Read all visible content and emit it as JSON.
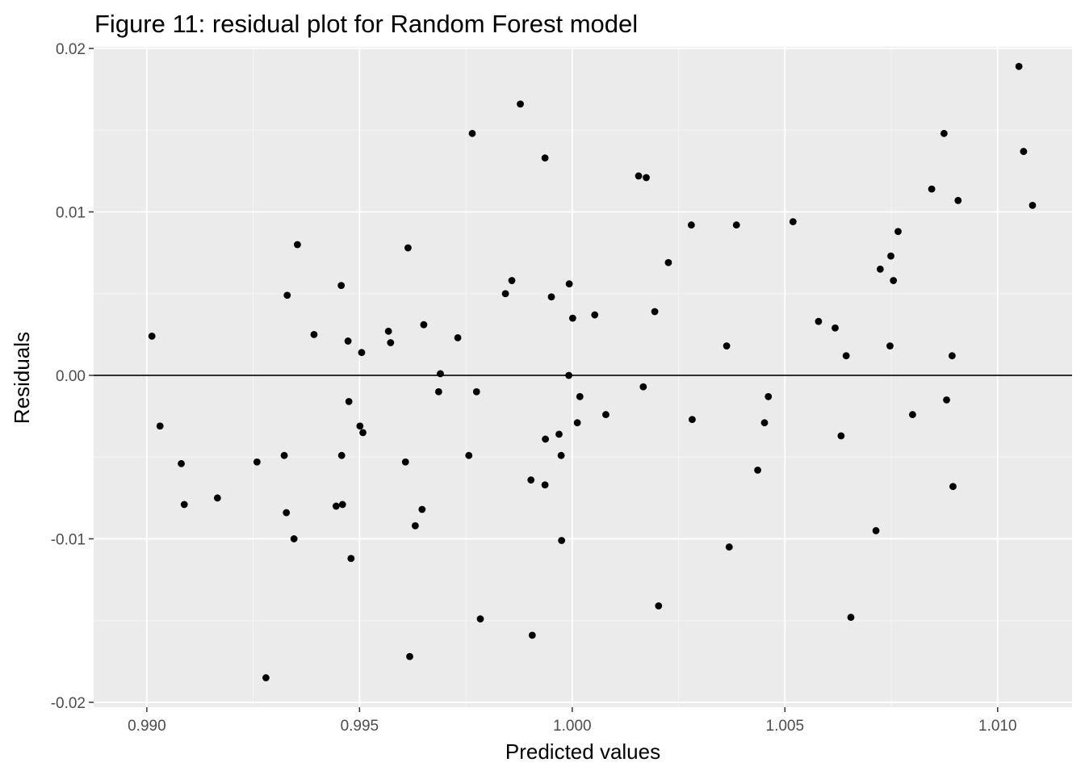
{
  "chart_data": {
    "type": "scatter",
    "title": "Figure 11: residual plot for Random Forest model",
    "xlabel": "Predicted values",
    "ylabel": "Residuals",
    "xlim": [
      0.98875,
      1.01175
    ],
    "ylim": [
      -0.0203,
      0.0201
    ],
    "x_ticks": [
      0.99,
      0.995,
      1.0,
      1.005,
      1.01
    ],
    "x_tick_labels": [
      "0.990",
      "0.995",
      "1.000",
      "1.005",
      "1.010"
    ],
    "y_ticks": [
      -0.02,
      -0.01,
      0.0,
      0.01,
      0.02
    ],
    "y_tick_labels": [
      "-0.02",
      "-0.01",
      "0.00",
      "0.01",
      "0.02"
    ],
    "reference_line_y": 0,
    "grid": true,
    "legend": "none",
    "colors": {
      "panel_background": "#ebebeb",
      "grid_major": "#ffffff",
      "grid_minor": "#f5f5f5",
      "points": "#000000",
      "reference_line": "#000000",
      "tick_label": "#4d4d4d",
      "tick_mark": "#333333"
    },
    "points": [
      {
        "x": 0.99012,
        "y": 0.0024
      },
      {
        "x": 0.99031,
        "y": -0.0031
      },
      {
        "x": 0.99081,
        "y": -0.0054
      },
      {
        "x": 0.99088,
        "y": -0.0079
      },
      {
        "x": 0.99166,
        "y": -0.0075
      },
      {
        "x": 0.99259,
        "y": -0.0053
      },
      {
        "x": 0.9928,
        "y": -0.0185
      },
      {
        "x": 0.99323,
        "y": -0.0049
      },
      {
        "x": 0.99328,
        "y": -0.0084
      },
      {
        "x": 0.9933,
        "y": 0.0049
      },
      {
        "x": 0.99346,
        "y": -0.01
      },
      {
        "x": 0.99354,
        "y": 0.008
      },
      {
        "x": 0.99393,
        "y": 0.0025
      },
      {
        "x": 0.99445,
        "y": -0.008
      },
      {
        "x": 0.99457,
        "y": 0.0055
      },
      {
        "x": 0.99458,
        "y": -0.0049
      },
      {
        "x": 0.9946,
        "y": -0.0079
      },
      {
        "x": 0.99473,
        "y": 0.0021
      },
      {
        "x": 0.99475,
        "y": -0.0016
      },
      {
        "x": 0.9948,
        "y": -0.0112
      },
      {
        "x": 0.99501,
        "y": -0.0031
      },
      {
        "x": 0.99505,
        "y": 0.0014
      },
      {
        "x": 0.99508,
        "y": -0.0035
      },
      {
        "x": 0.99568,
        "y": 0.0027
      },
      {
        "x": 0.99573,
        "y": 0.002
      },
      {
        "x": 0.99608,
        "y": -0.0053
      },
      {
        "x": 0.99614,
        "y": 0.0078
      },
      {
        "x": 0.99618,
        "y": -0.0172
      },
      {
        "x": 0.99631,
        "y": -0.0092
      },
      {
        "x": 0.99647,
        "y": -0.0082
      },
      {
        "x": 0.99651,
        "y": 0.0031
      },
      {
        "x": 0.99686,
        "y": -0.001
      },
      {
        "x": 0.9969,
        "y": 0.0001
      },
      {
        "x": 0.99731,
        "y": 0.0023
      },
      {
        "x": 0.99757,
        "y": -0.0049
      },
      {
        "x": 0.99765,
        "y": 0.0148
      },
      {
        "x": 0.99775,
        "y": -0.001
      },
      {
        "x": 0.99784,
        "y": -0.0149
      },
      {
        "x": 0.99843,
        "y": 0.005
      },
      {
        "x": 0.99858,
        "y": 0.0058
      },
      {
        "x": 0.99878,
        "y": 0.0166
      },
      {
        "x": 0.99903,
        "y": -0.0064
      },
      {
        "x": 0.99906,
        "y": -0.0159
      },
      {
        "x": 0.99936,
        "y": 0.0133
      },
      {
        "x": 0.99937,
        "y": -0.0039
      },
      {
        "x": 0.99936,
        "y": -0.0067
      },
      {
        "x": 0.99951,
        "y": 0.0048
      },
      {
        "x": 0.99969,
        "y": -0.0036
      },
      {
        "x": 0.99974,
        "y": -0.0049
      },
      {
        "x": 0.99975,
        "y": -0.0101
      },
      {
        "x": 0.99992,
        "y": 0.0
      },
      {
        "x": 0.99993,
        "y": 0.0056
      },
      {
        "x": 1.00001,
        "y": 0.0035
      },
      {
        "x": 1.00012,
        "y": -0.0029
      },
      {
        "x": 1.00018,
        "y": -0.0013
      },
      {
        "x": 1.00053,
        "y": 0.0037
      },
      {
        "x": 1.00079,
        "y": -0.0024
      },
      {
        "x": 1.00156,
        "y": 0.0122
      },
      {
        "x": 1.00167,
        "y": -0.0007
      },
      {
        "x": 1.00174,
        "y": 0.0121
      },
      {
        "x": 1.00194,
        "y": 0.0039
      },
      {
        "x": 1.00203,
        "y": -0.0141
      },
      {
        "x": 1.00226,
        "y": 0.0069
      },
      {
        "x": 1.0028,
        "y": 0.0092
      },
      {
        "x": 1.00282,
        "y": -0.0027
      },
      {
        "x": 1.00363,
        "y": 0.0018
      },
      {
        "x": 1.00369,
        "y": -0.0105
      },
      {
        "x": 1.00386,
        "y": 0.0092
      },
      {
        "x": 1.00436,
        "y": -0.0058
      },
      {
        "x": 1.00452,
        "y": -0.0029
      },
      {
        "x": 1.00461,
        "y": -0.0013
      },
      {
        "x": 1.00519,
        "y": 0.0094
      },
      {
        "x": 1.00579,
        "y": 0.0033
      },
      {
        "x": 1.00618,
        "y": 0.0029
      },
      {
        "x": 1.00632,
        "y": -0.0037
      },
      {
        "x": 1.00644,
        "y": 0.0012
      },
      {
        "x": 1.00655,
        "y": -0.0148
      },
      {
        "x": 1.00714,
        "y": -0.0095
      },
      {
        "x": 1.00724,
        "y": 0.0065
      },
      {
        "x": 1.00747,
        "y": 0.0018
      },
      {
        "x": 1.00749,
        "y": 0.0073
      },
      {
        "x": 1.00755,
        "y": 0.0058
      },
      {
        "x": 1.00766,
        "y": 0.0088
      },
      {
        "x": 1.008,
        "y": -0.0024
      },
      {
        "x": 1.00845,
        "y": 0.0114
      },
      {
        "x": 1.00874,
        "y": 0.0148
      },
      {
        "x": 1.0088,
        "y": -0.0015
      },
      {
        "x": 1.00893,
        "y": 0.0012
      },
      {
        "x": 1.00895,
        "y": -0.0068
      },
      {
        "x": 1.00907,
        "y": 0.0107
      },
      {
        "x": 1.0105,
        "y": 0.0189
      },
      {
        "x": 1.01061,
        "y": 0.0137
      },
      {
        "x": 1.01082,
        "y": 0.0104
      }
    ]
  }
}
